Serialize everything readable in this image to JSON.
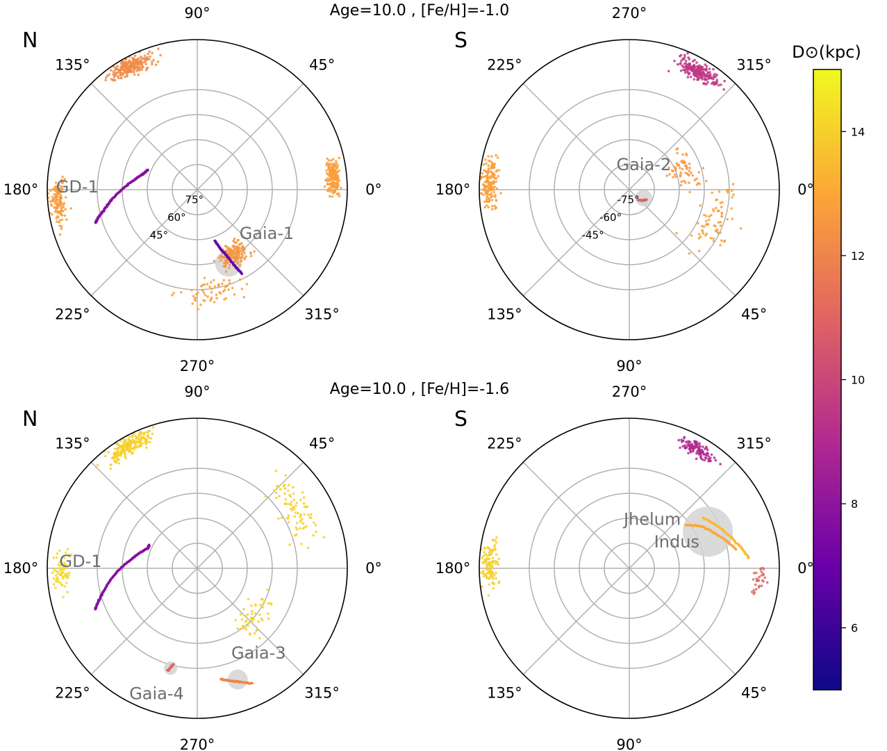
{
  "chart_data": {
    "type": "scatter",
    "rows": [
      {
        "title": "Age=10.0 , [Fe/H]=-1.0"
      },
      {
        "title": "Age=10.0 , [Fe/H]=-1.6"
      }
    ],
    "colorbar": {
      "label": "D⊙(kpc)",
      "ticks": [
        6,
        8,
        10,
        12,
        14
      ],
      "range": [
        5,
        15
      ],
      "colors": [
        "#0d0887",
        "#6a00a8",
        "#b12a90",
        "#e16462",
        "#fca636",
        "#f0f921"
      ]
    },
    "panels": [
      {
        "hemisphere": "N",
        "projection": "polar-north",
        "lon_ticks": [
          "0°",
          "45°",
          "90°",
          "135°",
          "180°",
          "225°",
          "270°",
          "315°"
        ],
        "lat_ticks": [
          "75°",
          "60°",
          "45°"
        ],
        "lat_values": [
          75,
          60,
          45,
          30
        ],
        "streams": [
          {
            "name": "GD-1",
            "highlight": false,
            "distance_kpc": 7.8,
            "lon": [
              198,
              196,
              193,
              188,
              182,
              175,
              168,
              162,
              158
            ],
            "lat": [
              26,
              28,
              32,
              37,
              43,
              49,
              54,
              57,
              58
            ]
          },
          {
            "name": "Gaia-1",
            "highlight": true,
            "distance_kpc": 7.0,
            "lon": [
              298,
              296,
              294,
              291,
              289
            ],
            "lat": [
              33,
              40,
              47,
              53,
              58
            ],
            "region_lon": 293,
            "region_lat": 42,
            "region_radius_deg": 8
          }
        ],
        "field_clumps": [
          {
            "lon": 5,
            "lat": 8,
            "spread_deg": 5,
            "count": 180,
            "distance_kpc": 12.8
          },
          {
            "lon": 185,
            "lat": 6,
            "spread_deg": 6,
            "count": 120,
            "distance_kpc": 12.7
          },
          {
            "lon": 118,
            "lat": 6,
            "spread_deg": 6,
            "count": 220,
            "distance_kpc": 12.2
          },
          {
            "lon": 300,
            "lat": 45,
            "spread_deg": 8,
            "count": 160,
            "distance_kpc": 12.5
          },
          {
            "lon": 278,
            "lat": 28,
            "spread_deg": 10,
            "count": 60,
            "distance_kpc": 12.8
          }
        ]
      },
      {
        "hemisphere": "S",
        "projection": "polar-south",
        "lon_ticks": [
          "0°",
          "45°",
          "90°",
          "135°",
          "180°",
          "225°",
          "270°",
          "315°"
        ],
        "lat_ticks": [
          "-75°",
          "-60°",
          "-45°"
        ],
        "lat_values": [
          -75,
          -60,
          -45,
          -30
        ],
        "streams": [
          {
            "name": "Gaia-2",
            "highlight": true,
            "distance_kpc": 11.0,
            "lon": [
              30,
              40,
              50
            ],
            "lat": [
              -78,
              -80,
              -82
            ],
            "region_lon": 30,
            "region_lat": -80,
            "region_radius_deg": 5
          }
        ],
        "field_clumps": [
          {
            "lon": 300,
            "lat": -8,
            "spread_deg": 6,
            "count": 220,
            "distance_kpc": 9.5
          },
          {
            "lon": 183,
            "lat": -6,
            "spread_deg": 6,
            "count": 150,
            "distance_kpc": 12.8
          },
          {
            "lon": 340,
            "lat": -55,
            "spread_deg": 12,
            "count": 60,
            "distance_kpc": 12.6
          },
          {
            "lon": 20,
            "lat": -35,
            "spread_deg": 14,
            "count": 70,
            "distance_kpc": 12.8
          }
        ]
      },
      {
        "hemisphere": "N",
        "projection": "polar-north",
        "lon_ticks": [
          "0°",
          "45°",
          "90°",
          "135°",
          "180°",
          "225°",
          "270°",
          "315°"
        ],
        "lat_ticks": [],
        "lat_values": [
          75,
          60,
          45,
          30
        ],
        "streams": [
          {
            "name": "GD-1",
            "highlight": false,
            "distance_kpc": 7.8,
            "lon": [
              202,
              198,
              193,
              186,
              179,
              171,
              164,
              158,
              154
            ],
            "lat": [
              24,
              28,
              33,
              39,
              45,
              51,
              55,
              58,
              58
            ]
          },
          {
            "name": "Gaia-3",
            "highlight": true,
            "distance_kpc": 12.0,
            "lon": [
              282,
              286,
              291,
              296
            ],
            "lat": [
              22,
              20,
              17,
              13
            ],
            "region_lon": 290,
            "region_lat": 19,
            "region_radius_deg": 6
          },
          {
            "name": "Gaia-4",
            "highlight": true,
            "distance_kpc": 11.0,
            "lon": [
              254,
              256
            ],
            "lat": [
              26,
              31
            ],
            "region_lon": 255,
            "region_lat": 28,
            "region_radius_deg": 4
          }
        ],
        "field_clumps": [
          {
            "lon": 120,
            "lat": 6,
            "spread_deg": 6,
            "count": 200,
            "distance_kpc": 14.0
          },
          {
            "lon": 182,
            "lat": 8,
            "spread_deg": 6,
            "count": 70,
            "distance_kpc": 14.2
          },
          {
            "lon": 30,
            "lat": 20,
            "spread_deg": 12,
            "count": 80,
            "distance_kpc": 14.0
          },
          {
            "lon": 320,
            "lat": 45,
            "spread_deg": 12,
            "count": 50,
            "distance_kpc": 14.0
          }
        ]
      },
      {
        "hemisphere": "S",
        "projection": "polar-south",
        "lon_ticks": [
          "0°",
          "45°",
          "90°",
          "135°",
          "180°",
          "225°",
          "270°",
          "315°"
        ],
        "lat_ticks": [],
        "lat_values": [
          -75,
          -60,
          -45,
          -30
        ],
        "streams": [
          {
            "name": "Jhelum",
            "highlight": true,
            "distance_kpc": 13.0,
            "lon": [
              350,
              340,
              330,
              322
            ],
            "lat": [
              -25,
              -33,
              -40,
              -48
            ],
            "region_lon": 335,
            "region_lat": -38,
            "region_radius_deg": 15
          },
          {
            "name": "Indus",
            "highlight": false,
            "distance_kpc": 13.5,
            "lon": [
              355,
              345,
              335,
              325
            ],
            "lat": [
              -18,
              -25,
              -31,
              -37
            ]
          }
        ],
        "field_clumps": [
          {
            "lon": 300,
            "lat": -8,
            "spread_deg": 5,
            "count": 120,
            "distance_kpc": 9.0
          },
          {
            "lon": 182,
            "lat": -6,
            "spread_deg": 6,
            "count": 120,
            "distance_kpc": 14.0
          },
          {
            "lon": 5,
            "lat": -12,
            "spread_deg": 5,
            "count": 30,
            "distance_kpc": 11.0
          }
        ]
      }
    ]
  }
}
